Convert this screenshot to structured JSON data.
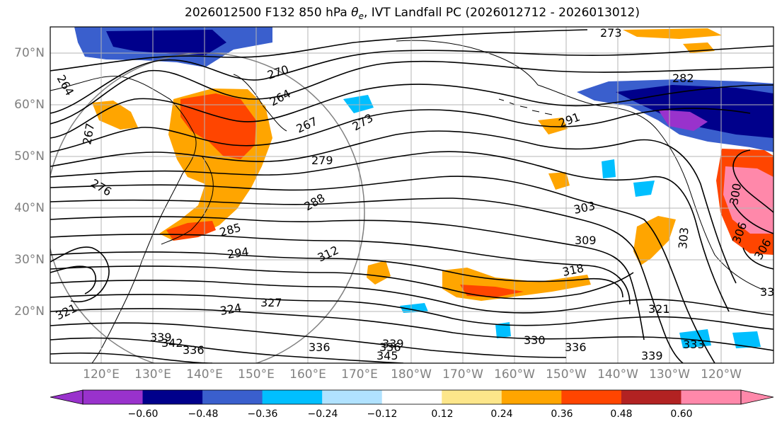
{
  "title": {
    "prefix": "2026012500 F132 850 hPa ",
    "symbol": "θ",
    "symbol_sub": "e",
    "suffix": ", IVT Landfall PC (2026012712 - 2026013012)"
  },
  "map": {
    "lat_labels": [
      "70°N",
      "60°N",
      "50°N",
      "40°N",
      "30°N",
      "20°N"
    ],
    "lon_labels": [
      "120°E",
      "130°E",
      "140°E",
      "150°E",
      "160°E",
      "170°E",
      "180°W",
      "170°W",
      "160°W",
      "150°W",
      "140°W",
      "130°W",
      "120°W"
    ],
    "contour_labels": [
      "273",
      "270",
      "264",
      "264",
      "282",
      "273",
      "267",
      "291",
      "267",
      "279",
      "276",
      "288",
      "303",
      "300",
      "285",
      "309",
      "294",
      "312",
      "303",
      "306",
      "318",
      "306",
      "324",
      "327",
      "321",
      "321",
      "339",
      "342",
      "336",
      "336",
      "336",
      "339",
      "345",
      "330",
      "336",
      "339",
      "333",
      "33"
    ]
  },
  "colorbar": {
    "ticks": [
      "−0.60",
      "−0.48",
      "−0.36",
      "−0.24",
      "−0.12",
      "0.12",
      "0.24",
      "0.36",
      "0.48",
      "0.60"
    ],
    "colors": [
      "#9932cc",
      "#00008b",
      "#3a5fcd",
      "#00bfff",
      "#b0e2ff",
      "#ffffff",
      "#fde68a",
      "#ffa500",
      "#ff4500",
      "#b22222",
      "#ff88aa"
    ],
    "under_color": "#9932cc",
    "over_color": "#ff88aa"
  }
}
